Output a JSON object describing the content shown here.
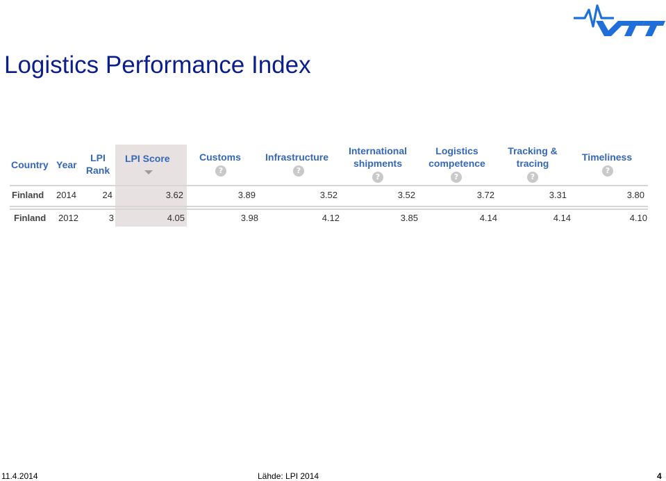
{
  "slide": {
    "title": "Logistics Performance Index",
    "footer_date": "11.4.2014",
    "footer_source": "Lähde: LPI 2014",
    "page_number": "4"
  },
  "logo": {
    "name": "VTT",
    "color": "#1e6fd9"
  },
  "table": {
    "headers": {
      "country": "Country",
      "year": "Year",
      "rank_l1": "LPI",
      "rank_l2": "Rank",
      "score": "LPI Score",
      "customs": "Customs",
      "infrastructure": "Infrastructure",
      "intl_l1": "International",
      "intl_l2": "shipments",
      "logcomp_l1": "Logistics",
      "logcomp_l2": "competence",
      "track_l1": "Tracking &",
      "track_l2": "tracing",
      "timeliness": "Timeliness",
      "help": "?"
    },
    "rows": [
      {
        "country": "Finland",
        "year": "2014",
        "rank": "24",
        "score": "3.62",
        "customs": "3.89",
        "infrastructure": "3.52",
        "intl": "3.52",
        "logcomp": "3.72",
        "track": "3.31",
        "timeliness": "3.80"
      },
      {
        "country": "Finland",
        "year": "2012",
        "rank": "3",
        "score": "4.05",
        "customs": "3.98",
        "infrastructure": "4.12",
        "intl": "3.85",
        "logcomp": "4.14",
        "track": "4.14",
        "timeliness": "4.10"
      }
    ],
    "colors": {
      "header": "#3567b8",
      "highlight": "#e8e1e1"
    }
  }
}
